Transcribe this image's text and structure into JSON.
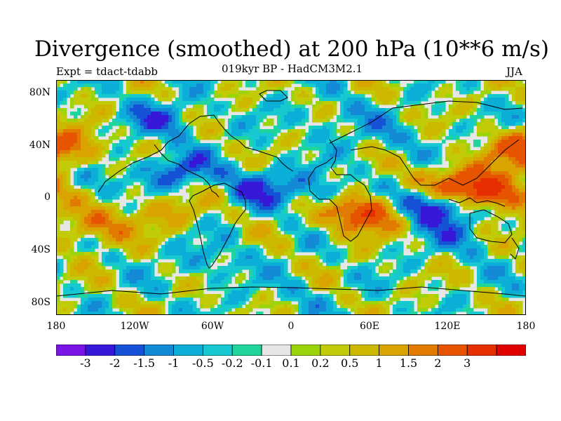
{
  "title": "Divergence (smoothed) at 200 hPa (10**6 m/s)",
  "left_label": "Expt = tdact-tdabb",
  "center_label": "019kyr BP - HadCM3M2.1",
  "right_label": "JJA",
  "lat_ticks": [
    "80N",
    "40N",
    "0",
    "40S",
    "80S"
  ],
  "lon_ticks": [
    "180",
    "120W",
    "60W",
    "0",
    "60E",
    "120E",
    "180"
  ],
  "colorbar": {
    "colors": [
      "#7b14e6",
      "#3818d8",
      "#1552d6",
      "#1489d5",
      "#0aaed7",
      "#16c8cf",
      "#1fd59c",
      "#e6e6e6",
      "#9bd40b",
      "#c1cb07",
      "#cdb800",
      "#d9a300",
      "#e07a00",
      "#e65400",
      "#e62e00",
      "#e00000"
    ],
    "labels": [
      "-3",
      "-2",
      "-1.5",
      "-1",
      "-0.5",
      "-0.2",
      "-0.1",
      "0.1",
      "0.2",
      "0.5",
      "1",
      "1.5",
      "2",
      "3"
    ]
  },
  "chart_data": {
    "type": "heatmap",
    "title": "Divergence (smoothed) at 200 hPa (10**6 m/s)",
    "subtitle": "019kyr BP - HadCM3M2.1",
    "experiment": "tdact-tdabb",
    "season": "JJA",
    "xlim": [
      -180,
      180
    ],
    "ylim": [
      -90,
      90
    ],
    "levels": [
      -3,
      -2,
      -1.5,
      -1,
      -0.5,
      -0.2,
      -0.1,
      0.1,
      0.2,
      0.5,
      1,
      1.5,
      2,
      3
    ],
    "features": [
      {
        "lon": 152,
        "lat": 4,
        "value": 3.5
      },
      {
        "lon": 120,
        "lat": 10,
        "value": 2.2
      },
      {
        "lon": 55,
        "lat": -12,
        "value": 3.2
      },
      {
        "lon": -150,
        "lat": -22,
        "value": 1.8
      },
      {
        "lon": -95,
        "lat": -10,
        "value": 1.0
      },
      {
        "lon": -170,
        "lat": 40,
        "value": 1.2
      },
      {
        "lon": 175,
        "lat": 35,
        "value": 1.5
      },
      {
        "lon": -45,
        "lat": 8,
        "value": 1.0
      },
      {
        "lon": -130,
        "lat": 5,
        "value": 0.8
      },
      {
        "lon": 110,
        "lat": -6,
        "value": -3.2
      },
      {
        "lon": -30,
        "lat": 8,
        "value": -2.5
      },
      {
        "lon": -85,
        "lat": 20,
        "value": -1.8
      },
      {
        "lon": -140,
        "lat": 8,
        "value": -1.3
      },
      {
        "lon": 25,
        "lat": 5,
        "value": -1.0
      },
      {
        "lon": -100,
        "lat": 60,
        "value": -1.4
      },
      {
        "lon": 80,
        "lat": 45,
        "value": -0.6
      },
      {
        "lon": 35,
        "lat": 60,
        "value": -0.7
      },
      {
        "lon": -60,
        "lat": -50,
        "value": -0.8
      },
      {
        "lon": 0,
        "lat": -75,
        "value": -0.4
      },
      {
        "lon": 130,
        "lat": -30,
        "value": -0.9
      }
    ]
  }
}
